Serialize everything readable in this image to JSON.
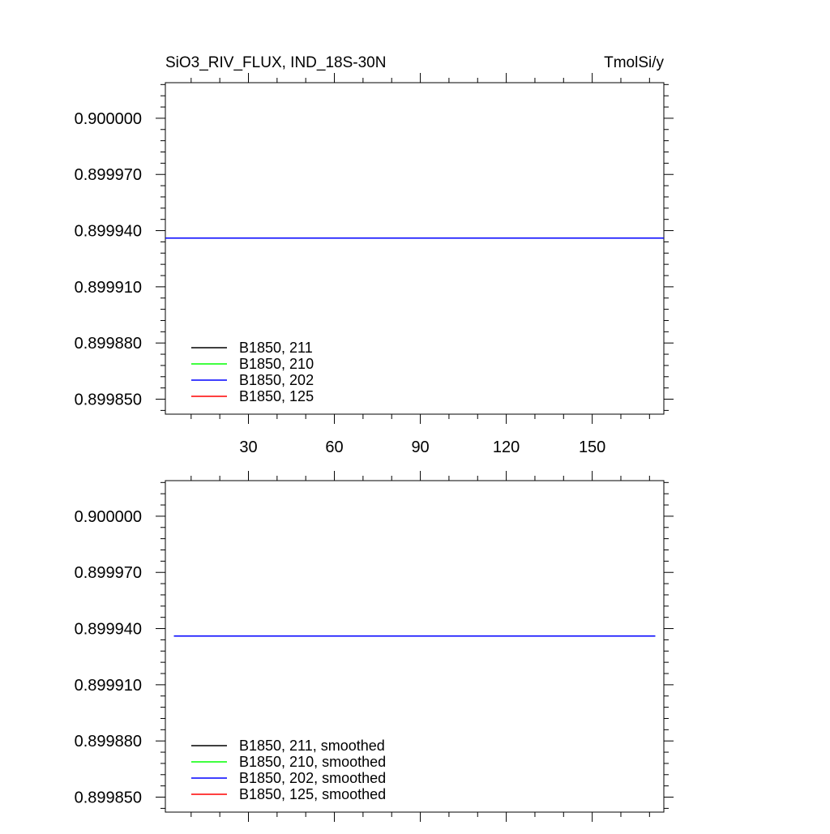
{
  "header": {
    "title": "SiO3_RIV_FLUX, IND_18S-30N",
    "units": "TmolSi/y"
  },
  "colors": {
    "B1850, 211": "#000000",
    "B1850, 210": "#00ff00",
    "B1850, 202": "#0000ff",
    "B1850, 125": "#ff0000"
  },
  "chart_data": [
    {
      "type": "line",
      "title": "SiO3_RIV_FLUX, IND_18S-30N",
      "ylabel": "TmolSi/y",
      "xlim": [
        1,
        175
      ],
      "ylim": [
        0.899842,
        0.900019
      ],
      "x_ticks": [
        30,
        60,
        90,
        120,
        150
      ],
      "y_ticks": [
        "0.900000",
        "0.899970",
        "0.899940",
        "0.899910",
        "0.899880",
        "0.899850"
      ],
      "legend_position": "bottom-left",
      "series": [
        {
          "name": "B1850, 211",
          "color": "#000000",
          "x": [
            1,
            175
          ],
          "y": [
            0.899936,
            0.899936
          ]
        },
        {
          "name": "B1850, 210",
          "color": "#00ff00",
          "x": [
            1,
            175
          ],
          "y": [
            0.899936,
            0.899936
          ]
        },
        {
          "name": "B1850, 202",
          "color": "#0000ff",
          "x": [
            1,
            175
          ],
          "y": [
            0.899936,
            0.899936
          ]
        },
        {
          "name": "B1850, 125",
          "color": "#ff0000",
          "x": [],
          "y": []
        }
      ]
    },
    {
      "type": "line",
      "xlim": [
        1,
        175
      ],
      "ylim": [
        0.899842,
        0.900019
      ],
      "x_ticks": [
        30,
        60,
        90,
        120,
        150
      ],
      "y_ticks": [
        "0.900000",
        "0.899970",
        "0.899940",
        "0.899910",
        "0.899880",
        "0.899850"
      ],
      "legend_position": "bottom-left",
      "series": [
        {
          "name": "B1850, 211, smoothed",
          "color": "#000000",
          "x": [
            4,
            172
          ],
          "y": [
            0.899936,
            0.899936
          ]
        },
        {
          "name": "B1850, 210, smoothed",
          "color": "#00ff00",
          "x": [
            4,
            172
          ],
          "y": [
            0.899936,
            0.899936
          ]
        },
        {
          "name": "B1850, 202, smoothed",
          "color": "#0000ff",
          "x": [
            4,
            172
          ],
          "y": [
            0.899936,
            0.899936
          ]
        },
        {
          "name": "B1850, 125, smoothed",
          "color": "#ff0000",
          "x": [],
          "y": []
        }
      ]
    }
  ]
}
